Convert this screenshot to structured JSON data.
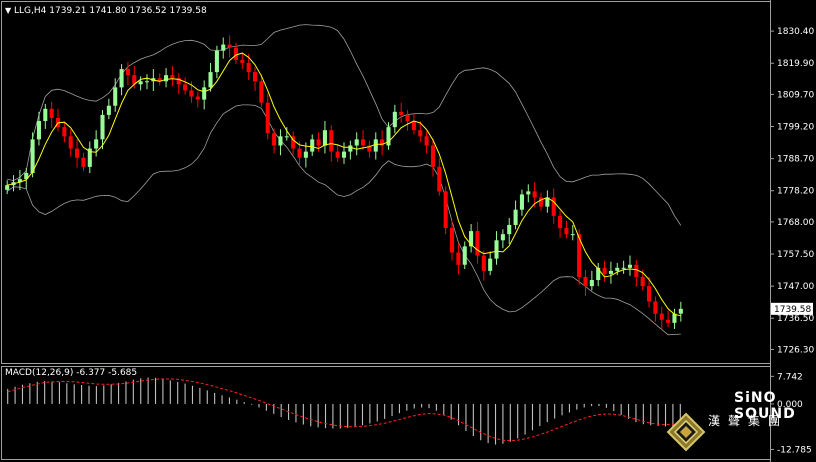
{
  "header": {
    "symbol_label": "LLG,H4",
    "ohlc": "1739.21 1741.80 1736.52 1739.58"
  },
  "macd_header": {
    "label": "MACD(12,26,9)",
    "values": "-6.377 -5.685"
  },
  "logo": {
    "name": "SiNO SOUND",
    "chinese": "漢聲集團"
  },
  "colors": {
    "background": "#000000",
    "up_candle": "#98FB98",
    "down_candle": "#FF0000",
    "ma_line": "#FFFF00",
    "bands": "#A0A0A0",
    "macd_hist": "#C0C0C0",
    "macd_signal": "#FF2020",
    "axis_text": "#FFFFFF"
  },
  "chart_data": [
    {
      "type": "candlestick",
      "title": "",
      "current_price": "1739.58",
      "y_ticks": [
        "1830.40",
        "1819.90",
        "1809.70",
        "1799.20",
        "1788.70",
        "1778.20",
        "1768.00",
        "1757.50",
        "1747.00",
        "1736.50",
        "1726.30"
      ],
      "ylim": [
        1723.5,
        1836.0
      ],
      "overlays": [
        "moving-average",
        "bollinger-bands"
      ],
      "grid": false,
      "closes": [
        1780,
        1781,
        1782,
        1784,
        1795,
        1801,
        1805,
        1802,
        1799,
        1796,
        1792,
        1789,
        1786,
        1792,
        1795,
        1803,
        1806,
        1812,
        1818,
        1816,
        1813,
        1814,
        1814,
        1815,
        1814,
        1816,
        1815,
        1813,
        1811,
        1809,
        1808,
        1812,
        1817,
        1824,
        1826,
        1825,
        1821,
        1820,
        1817,
        1814,
        1807,
        1797,
        1793,
        1796,
        1796,
        1792,
        1789,
        1791,
        1795,
        1793,
        1798,
        1791,
        1789,
        1791,
        1793,
        1795,
        1793,
        1791,
        1795,
        1793,
        1799,
        1804,
        1803,
        1801,
        1798,
        1796,
        1793,
        1786,
        1778,
        1766,
        1758,
        1754,
        1760,
        1765,
        1757,
        1752,
        1756,
        1762,
        1764,
        1767,
        1772,
        1777,
        1778,
        1776,
        1773,
        1776,
        1770,
        1766,
        1764,
        1764,
        1750,
        1747,
        1749,
        1753,
        1751,
        1752,
        1753,
        1753,
        1754,
        1750,
        1747,
        1742,
        1738,
        1736,
        1735,
        1738,
        1739.58
      ]
    },
    {
      "type": "histogram",
      "title": "",
      "label": "MACD(12,26,9)",
      "y_ticks": [
        "7.742",
        "0.000",
        "-12.785"
      ],
      "ylim": [
        -13.5,
        8.4
      ],
      "grid": false,
      "series": [
        {
          "values": [
            4.2,
            4.8,
            5.4,
            5.8,
            6.2,
            6.4,
            6.3,
            6.1,
            5.8,
            5.5,
            5.3,
            5.1,
            5.0,
            5.2,
            5.5,
            5.9,
            6.3,
            6.8,
            7.2,
            7.4,
            7.3,
            7.0,
            6.6,
            6.2,
            5.7,
            5.1,
            4.5,
            3.8,
            3.1,
            2.4,
            1.8,
            1.2,
            0.5,
            -0.2,
            -1.0,
            -1.9,
            -2.8,
            -3.7,
            -4.5,
            -5.2,
            -5.8,
            -6.3,
            -6.6,
            -6.8,
            -6.9,
            -6.9,
            -6.7,
            -6.4,
            -6.0,
            -5.5,
            -4.9,
            -4.2,
            -3.4,
            -2.6,
            -1.9,
            -1.3,
            -1.0,
            -1.2,
            -1.9,
            -3.0,
            -4.4,
            -6.0,
            -7.6,
            -9.0,
            -10.2,
            -11.0,
            -11.4,
            -11.2,
            -10.6,
            -9.7,
            -8.6,
            -7.4,
            -6.2,
            -5.1,
            -4.1,
            -3.2,
            -2.4,
            -1.6,
            -1.0,
            -0.6,
            -0.6,
            -1.1,
            -2.0,
            -3.1,
            -4.2,
            -5.1,
            -5.7,
            -6.0,
            -6.2,
            -6.3,
            -6.4,
            -6.4
          ]
        },
        {
          "name": "signal",
          "values": [
            3.4,
            4.0,
            4.6,
            5.1,
            5.6,
            6.0,
            6.2,
            6.3,
            6.3,
            6.2,
            6.0,
            5.8,
            5.6,
            5.5,
            5.5,
            5.6,
            5.8,
            6.1,
            6.4,
            6.7,
            6.9,
            7.0,
            7.0,
            6.9,
            6.6,
            6.3,
            5.9,
            5.4,
            4.9,
            4.3,
            3.7,
            3.1,
            2.4,
            1.7,
            1.0,
            0.2,
            -0.6,
            -1.4,
            -2.2,
            -3.0,
            -3.7,
            -4.4,
            -5.0,
            -5.5,
            -5.9,
            -6.2,
            -6.4,
            -6.4,
            -6.3,
            -6.1,
            -5.8,
            -5.4,
            -4.9,
            -4.4,
            -3.8,
            -3.3,
            -2.9,
            -2.7,
            -2.8,
            -3.1,
            -3.8,
            -4.7,
            -5.8,
            -6.9,
            -8.0,
            -8.9,
            -9.7,
            -10.2,
            -10.3,
            -10.2,
            -9.8,
            -9.3,
            -8.6,
            -7.9,
            -7.1,
            -6.3,
            -5.5,
            -4.7,
            -4.0,
            -3.4,
            -3.0,
            -2.8,
            -2.9,
            -3.2,
            -3.7,
            -4.3,
            -4.9,
            -5.4,
            -5.7,
            -5.8,
            -5.7,
            -5.685
          ]
        }
      ]
    }
  ]
}
